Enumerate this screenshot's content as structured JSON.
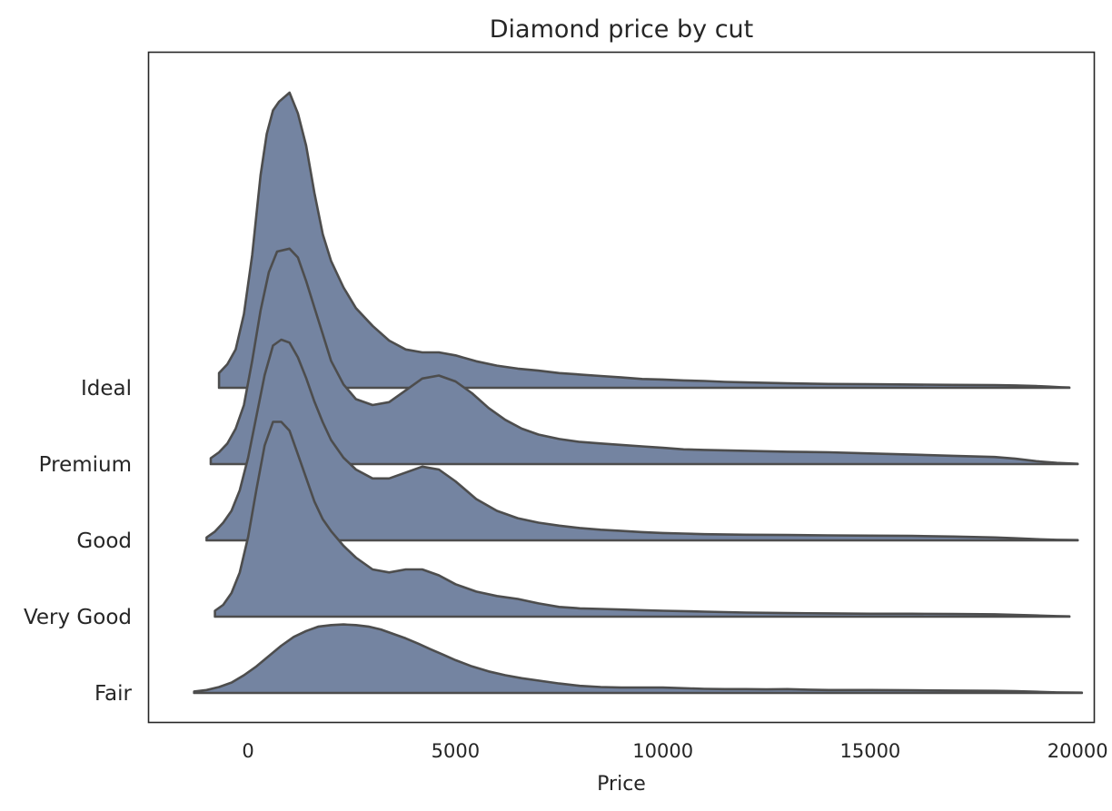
{
  "chart_data": {
    "type": "area",
    "subtype": "ridgeline",
    "title": "Diamond price by cut",
    "xlabel": "Price",
    "ylabel": "",
    "xlim": [
      -2400,
      20400
    ],
    "xticks": [
      0,
      5000,
      10000,
      15000,
      20000
    ],
    "xtick_labels": [
      "0",
      "5000",
      "10000",
      "15000",
      "20000"
    ],
    "grid": false,
    "fill_color": "#7484a1",
    "line_color": "#4d4d4d",
    "series": [
      {
        "name": "Ideal",
        "x": [
          -700,
          -700,
          -500,
          -300,
          -100,
          100,
          300,
          450,
          600,
          750,
          1000,
          1200,
          1400,
          1600,
          1800,
          2000,
          2300,
          2600,
          3000,
          3400,
          3800,
          4200,
          4600,
          5000,
          5500,
          6000,
          6500,
          7000,
          7500,
          8000,
          8500,
          9000,
          9500,
          10000,
          10500,
          11000,
          11500,
          12000,
          13000,
          14000,
          15000,
          16000,
          17000,
          18000,
          18500,
          19000,
          19300,
          19600,
          19800,
          19800
        ],
        "density": [
          0,
          0.05,
          0.08,
          0.13,
          0.25,
          0.45,
          0.72,
          0.86,
          0.94,
          0.97,
          1.0,
          0.93,
          0.82,
          0.66,
          0.52,
          0.43,
          0.34,
          0.27,
          0.21,
          0.16,
          0.13,
          0.12,
          0.12,
          0.11,
          0.09,
          0.075,
          0.065,
          0.058,
          0.05,
          0.045,
          0.04,
          0.035,
          0.03,
          0.028,
          0.025,
          0.023,
          0.02,
          0.018,
          0.015,
          0.013,
          0.012,
          0.011,
          0.01,
          0.009,
          0.008,
          0.006,
          0.004,
          0.002,
          0.001,
          0
        ]
      },
      {
        "name": "Premium",
        "x": [
          -900,
          -900,
          -700,
          -500,
          -300,
          -100,
          100,
          300,
          500,
          700,
          1000,
          1200,
          1400,
          1600,
          1800,
          2000,
          2300,
          2600,
          3000,
          3400,
          3800,
          4200,
          4600,
          5000,
          5400,
          5800,
          6200,
          6600,
          7000,
          7500,
          8000,
          8500,
          9000,
          9500,
          10000,
          10500,
          11000,
          12000,
          13000,
          14000,
          15000,
          16000,
          17000,
          18000,
          18500,
          19000,
          19500,
          20000,
          20000
        ],
        "density": [
          0,
          0.02,
          0.04,
          0.07,
          0.12,
          0.2,
          0.35,
          0.52,
          0.65,
          0.72,
          0.73,
          0.7,
          0.62,
          0.53,
          0.44,
          0.35,
          0.27,
          0.22,
          0.2,
          0.21,
          0.25,
          0.29,
          0.3,
          0.28,
          0.24,
          0.19,
          0.15,
          0.12,
          0.1,
          0.085,
          0.075,
          0.07,
          0.065,
          0.06,
          0.055,
          0.05,
          0.048,
          0.045,
          0.042,
          0.04,
          0.036,
          0.032,
          0.028,
          0.024,
          0.018,
          0.01,
          0.004,
          0.001,
          0
        ]
      },
      {
        "name": "Good",
        "x": [
          -1000,
          -1000,
          -800,
          -600,
          -400,
          -200,
          0,
          200,
          400,
          600,
          800,
          1000,
          1200,
          1400,
          1600,
          1800,
          2000,
          2300,
          2600,
          3000,
          3400,
          3800,
          4200,
          4600,
          5000,
          5500,
          6000,
          6500,
          7000,
          7500,
          8000,
          8500,
          9000,
          9500,
          10000,
          10500,
          11000,
          12000,
          13000,
          14000,
          15000,
          16000,
          17000,
          18000,
          18500,
          19000,
          19500,
          20000,
          20000
        ],
        "density": [
          0,
          0.01,
          0.03,
          0.06,
          0.1,
          0.17,
          0.28,
          0.42,
          0.56,
          0.66,
          0.68,
          0.67,
          0.62,
          0.55,
          0.47,
          0.4,
          0.34,
          0.28,
          0.24,
          0.21,
          0.21,
          0.23,
          0.25,
          0.24,
          0.2,
          0.14,
          0.1,
          0.075,
          0.06,
          0.05,
          0.042,
          0.036,
          0.032,
          0.028,
          0.025,
          0.023,
          0.021,
          0.019,
          0.018,
          0.017,
          0.016,
          0.015,
          0.013,
          0.01,
          0.007,
          0.004,
          0.002,
          0.001,
          0
        ]
      },
      {
        "name": "Very Good",
        "x": [
          -800,
          -800,
          -600,
          -400,
          -200,
          0,
          200,
          400,
          600,
          800,
          1000,
          1200,
          1400,
          1600,
          1800,
          2000,
          2300,
          2600,
          3000,
          3400,
          3800,
          4200,
          4600,
          5000,
          5500,
          6000,
          6500,
          7000,
          7500,
          8000,
          8500,
          9000,
          9500,
          10000,
          11000,
          12000,
          13000,
          14000,
          15000,
          16000,
          17000,
          18000,
          18500,
          19000,
          19500,
          19800,
          19800
        ],
        "density": [
          0,
          0.02,
          0.04,
          0.08,
          0.15,
          0.27,
          0.43,
          0.58,
          0.66,
          0.66,
          0.63,
          0.55,
          0.47,
          0.39,
          0.33,
          0.29,
          0.24,
          0.2,
          0.16,
          0.15,
          0.16,
          0.16,
          0.14,
          0.11,
          0.085,
          0.07,
          0.06,
          0.045,
          0.033,
          0.028,
          0.026,
          0.024,
          0.022,
          0.02,
          0.017,
          0.014,
          0.012,
          0.011,
          0.01,
          0.01,
          0.009,
          0.008,
          0.006,
          0.004,
          0.002,
          0.001,
          0
        ]
      },
      {
        "name": "Fair",
        "x": [
          -1300,
          -1300,
          -1000,
          -700,
          -400,
          -100,
          200,
          500,
          800,
          1100,
          1400,
          1700,
          2000,
          2300,
          2600,
          2900,
          3200,
          3500,
          3800,
          4100,
          4400,
          4700,
          5000,
          5400,
          5800,
          6200,
          6600,
          7000,
          7500,
          8000,
          8500,
          9000,
          9500,
          10000,
          10500,
          11000,
          11500,
          12000,
          12500,
          13000,
          13500,
          14000,
          15000,
          16000,
          17000,
          18000,
          18500,
          19000,
          19500,
          20100,
          20100
        ],
        "density": [
          0,
          0.005,
          0.01,
          0.02,
          0.035,
          0.06,
          0.09,
          0.125,
          0.16,
          0.19,
          0.21,
          0.225,
          0.23,
          0.232,
          0.23,
          0.225,
          0.215,
          0.2,
          0.185,
          0.167,
          0.148,
          0.13,
          0.111,
          0.09,
          0.073,
          0.06,
          0.05,
          0.042,
          0.032,
          0.024,
          0.02,
          0.018,
          0.018,
          0.018,
          0.016,
          0.014,
          0.013,
          0.013,
          0.012,
          0.013,
          0.011,
          0.01,
          0.01,
          0.009,
          0.008,
          0.007,
          0.006,
          0.004,
          0.002,
          0.001,
          0
        ]
      }
    ]
  }
}
